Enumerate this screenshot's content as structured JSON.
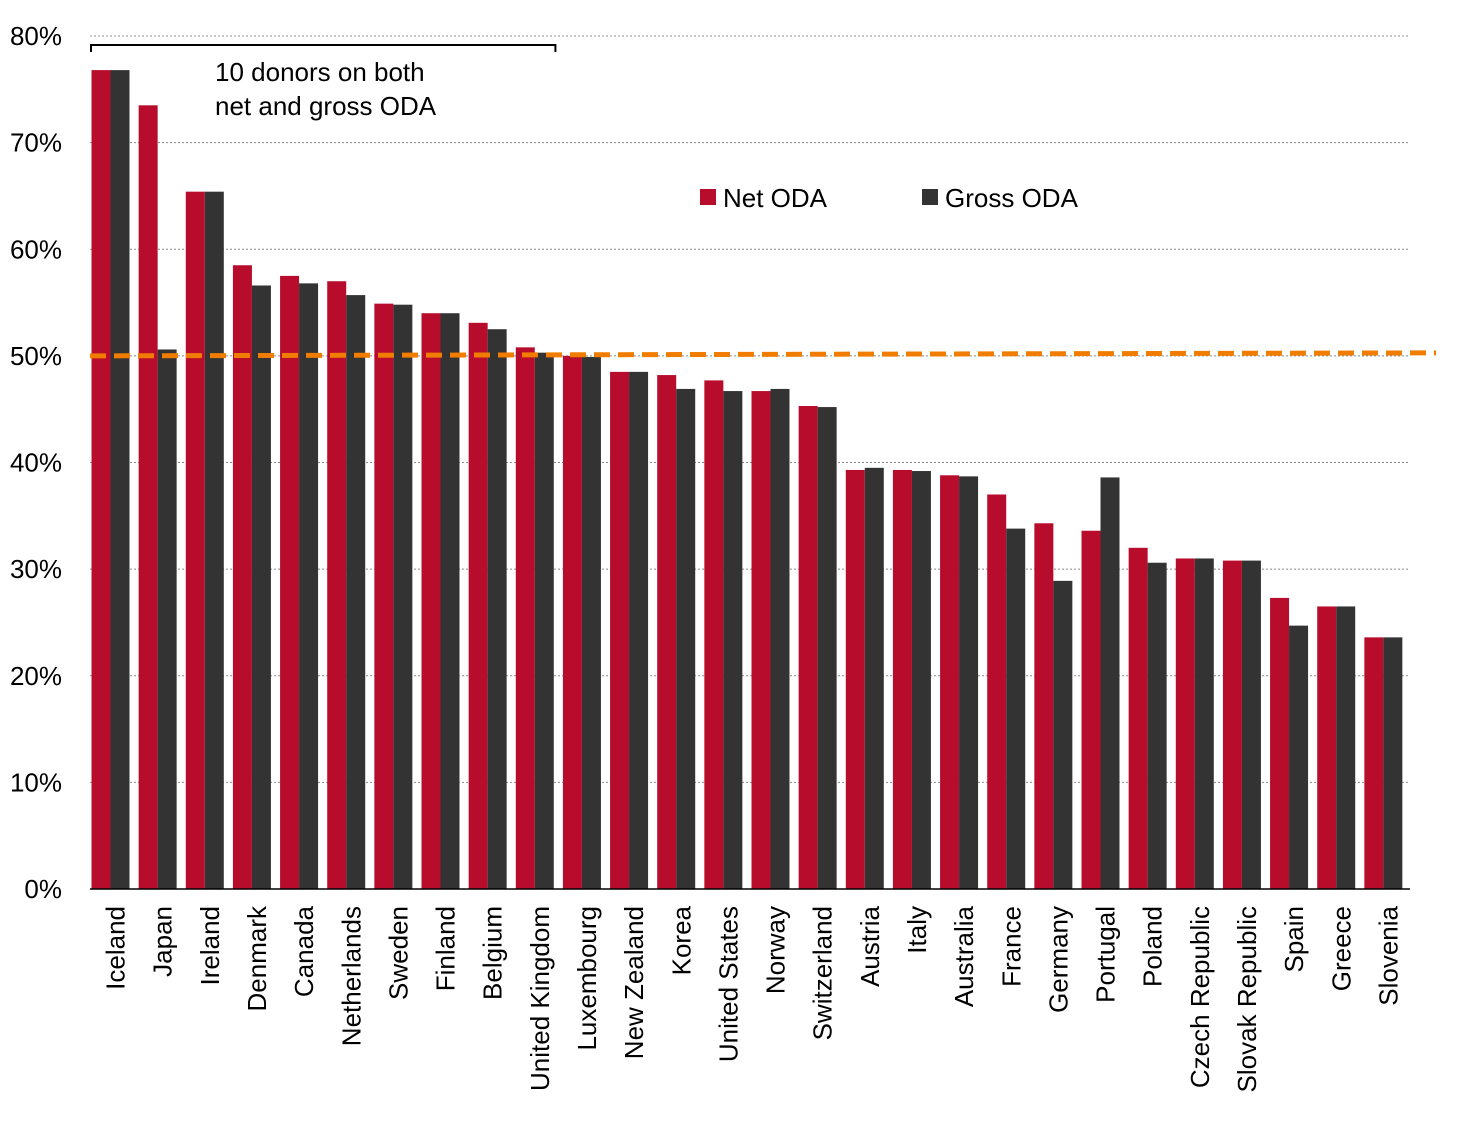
{
  "chart_data": {
    "type": "bar",
    "categories": [
      "Iceland",
      "Japan",
      "Ireland",
      "Denmark",
      "Canada",
      "Netherlands",
      "Sweden",
      "Finland",
      "Belgium",
      "United Kingdom",
      "Luxembourg",
      "New Zealand",
      "Korea",
      "United States",
      "Norway",
      "Switzerland",
      "Austria",
      "Italy",
      "Australia",
      "France",
      "Germany",
      "Portugal",
      "Poland",
      "Czech Republic",
      "Slovak Republic",
      "Spain",
      "Greece",
      "Slovenia"
    ],
    "series": [
      {
        "name": "Net ODA",
        "color": "#b80c2d",
        "values": [
          76.8,
          73.5,
          65.4,
          58.5,
          57.5,
          57.0,
          54.9,
          54.0,
          53.1,
          50.8,
          50.0,
          48.5,
          48.2,
          47.7,
          46.7,
          45.3,
          39.3,
          39.3,
          38.8,
          37.0,
          34.3,
          33.6,
          32.0,
          31.0,
          30.8,
          27.3,
          26.5,
          23.6
        ]
      },
      {
        "name": "Gross ODA",
        "color": "#333333",
        "values": [
          76.8,
          50.6,
          65.4,
          56.6,
          56.8,
          55.7,
          54.8,
          54.0,
          52.5,
          50.3,
          49.9,
          48.5,
          46.9,
          46.7,
          46.9,
          45.2,
          39.5,
          39.2,
          38.7,
          33.8,
          28.9,
          38.6,
          30.6,
          31.0,
          30.8,
          24.7,
          26.5,
          23.6
        ]
      }
    ],
    "yticks": [
      "0%",
      "10%",
      "20%",
      "30%",
      "40%",
      "50%",
      "60%",
      "70%",
      "80%"
    ],
    "ylim": [
      0,
      80
    ],
    "reference_line": {
      "value": 50,
      "color": "#f07d00",
      "style": "dashed"
    },
    "annotation": {
      "lines": [
        "10 donors on both",
        "net and gross ODA"
      ],
      "bracket_span": [
        "Iceland",
        "United Kingdom"
      ]
    },
    "legend_position": "top-right",
    "grid": "dotted horizontal"
  }
}
